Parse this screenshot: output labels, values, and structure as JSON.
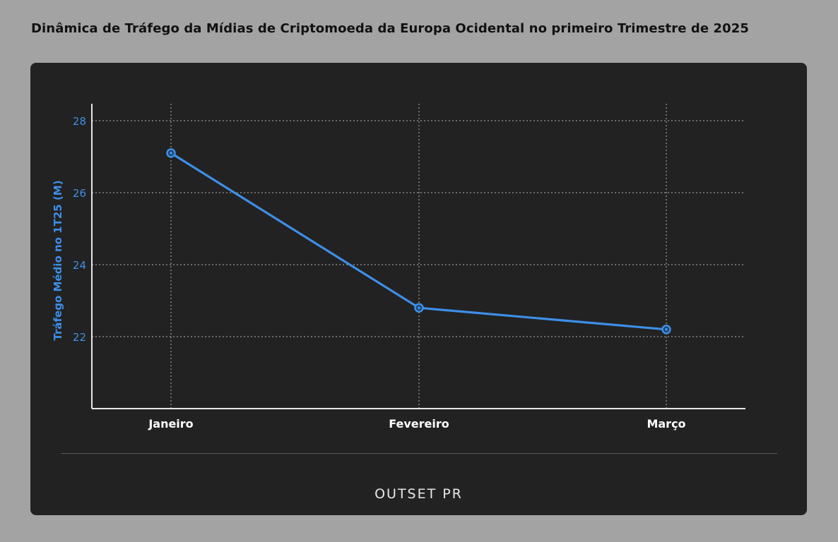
{
  "page": {
    "title": "Dinâmica de Tráfego da Mídias de Criptomoeda da Europa Ocidental no primeiro Trimestre de 2025",
    "logo_text": "OUTSET PR"
  },
  "chart_data": {
    "type": "line",
    "categories": [
      "Janeiro",
      "Fevereiro",
      "Março"
    ],
    "series": [
      {
        "values": [
          27.1,
          22.8,
          22.2
        ],
        "color": "#3d8fe8"
      }
    ],
    "xlabel": "",
    "ylabel": "Tráfego Médio no 1T25 (M)",
    "ylim": [
      20,
      28.5
    ],
    "yticks": [
      22,
      24,
      26,
      28
    ],
    "grid": true,
    "colors": {
      "line": "#3d8fe8",
      "axis_text": "#3d8fe8",
      "category_text": "#ffffff",
      "grid": "#9a9a9a",
      "axis": "#e6e6e6"
    }
  }
}
